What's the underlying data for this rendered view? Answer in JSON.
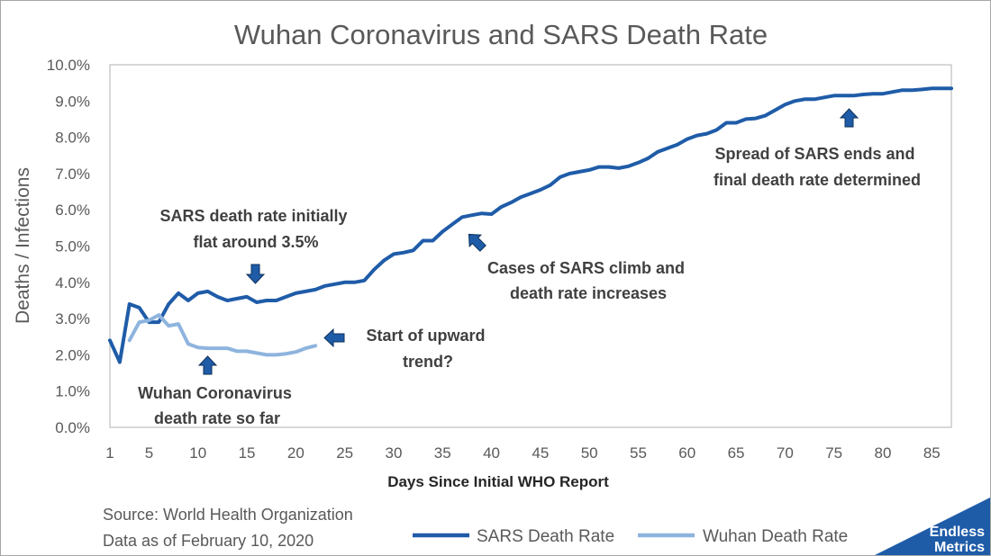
{
  "chart_data": {
    "type": "line",
    "title": "Wuhan Coronavirus and SARS Death Rate",
    "xlabel": "Days Since Initial WHO Report",
    "ylabel": "Deaths / Infections",
    "xlim": [
      1,
      87
    ],
    "ylim": [
      0,
      10
    ],
    "x_ticks": [
      "1",
      "5",
      "10",
      "15",
      "20",
      "25",
      "30",
      "35",
      "40",
      "45",
      "50",
      "55",
      "60",
      "65",
      "70",
      "75",
      "80",
      "85"
    ],
    "y_ticks": [
      "0.0%",
      "1.0%",
      "2.0%",
      "3.0%",
      "4.0%",
      "5.0%",
      "6.0%",
      "7.0%",
      "8.0%",
      "9.0%",
      "10.0%"
    ],
    "grid": false,
    "legend": "bottom",
    "series": [
      {
        "name": "SARS Death Rate",
        "color": "#1f5ca8",
        "points": [
          [
            1,
            2.4
          ],
          [
            2,
            1.8
          ],
          [
            3,
            3.4
          ],
          [
            4,
            3.3
          ],
          [
            5,
            2.9
          ],
          [
            6,
            2.9
          ],
          [
            7,
            3.4
          ],
          [
            8,
            3.7
          ],
          [
            9,
            3.5
          ],
          [
            10,
            3.7
          ],
          [
            11,
            3.75
          ],
          [
            12,
            3.6
          ],
          [
            13,
            3.5
          ],
          [
            14,
            3.55
          ],
          [
            15,
            3.6
          ],
          [
            16,
            3.45
          ],
          [
            17,
            3.5
          ],
          [
            18,
            3.5
          ],
          [
            19,
            3.6
          ],
          [
            20,
            3.7
          ],
          [
            21,
            3.75
          ],
          [
            22,
            3.8
          ],
          [
            23,
            3.9
          ],
          [
            24,
            3.95
          ],
          [
            25,
            4.0
          ],
          [
            26,
            4.0
          ],
          [
            27,
            4.05
          ],
          [
            28,
            4.35
          ],
          [
            29,
            4.6
          ],
          [
            30,
            4.78
          ],
          [
            31,
            4.82
          ],
          [
            32,
            4.88
          ],
          [
            33,
            5.15
          ],
          [
            34,
            5.15
          ],
          [
            35,
            5.4
          ],
          [
            36,
            5.6
          ],
          [
            37,
            5.8
          ],
          [
            38,
            5.85
          ],
          [
            39,
            5.9
          ],
          [
            40,
            5.88
          ],
          [
            41,
            6.08
          ],
          [
            42,
            6.2
          ],
          [
            43,
            6.35
          ],
          [
            44,
            6.45
          ],
          [
            45,
            6.55
          ],
          [
            46,
            6.68
          ],
          [
            47,
            6.9
          ],
          [
            48,
            7.0
          ],
          [
            49,
            7.05
          ],
          [
            50,
            7.1
          ],
          [
            51,
            7.18
          ],
          [
            52,
            7.18
          ],
          [
            53,
            7.15
          ],
          [
            54,
            7.2
          ],
          [
            55,
            7.3
          ],
          [
            56,
            7.42
          ],
          [
            57,
            7.6
          ],
          [
            58,
            7.7
          ],
          [
            59,
            7.8
          ],
          [
            60,
            7.95
          ],
          [
            61,
            8.05
          ],
          [
            62,
            8.1
          ],
          [
            63,
            8.2
          ],
          [
            64,
            8.4
          ],
          [
            65,
            8.4
          ],
          [
            66,
            8.5
          ],
          [
            67,
            8.52
          ],
          [
            68,
            8.6
          ],
          [
            69,
            8.75
          ],
          [
            70,
            8.9
          ],
          [
            71,
            9.0
          ],
          [
            72,
            9.05
          ],
          [
            73,
            9.05
          ],
          [
            74,
            9.1
          ],
          [
            75,
            9.15
          ],
          [
            76,
            9.15
          ],
          [
            77,
            9.15
          ],
          [
            78,
            9.18
          ],
          [
            79,
            9.2
          ],
          [
            80,
            9.2
          ],
          [
            81,
            9.25
          ],
          [
            82,
            9.3
          ],
          [
            83,
            9.3
          ],
          [
            84,
            9.32
          ],
          [
            85,
            9.35
          ],
          [
            86,
            9.35
          ],
          [
            87,
            9.35
          ]
        ]
      },
      {
        "name": "Wuhan Death Rate",
        "color": "#8eb4de",
        "points": [
          [
            3,
            2.4
          ],
          [
            4,
            2.9
          ],
          [
            5,
            2.95
          ],
          [
            6,
            3.1
          ],
          [
            7,
            2.8
          ],
          [
            8,
            2.85
          ],
          [
            9,
            2.3
          ],
          [
            10,
            2.2
          ],
          [
            11,
            2.18
          ],
          [
            12,
            2.18
          ],
          [
            13,
            2.18
          ],
          [
            14,
            2.1
          ],
          [
            15,
            2.1
          ],
          [
            16,
            2.05
          ],
          [
            17,
            2.0
          ],
          [
            18,
            2.0
          ],
          [
            19,
            2.03
          ],
          [
            20,
            2.08
          ],
          [
            21,
            2.18
          ],
          [
            22,
            2.25
          ]
        ]
      }
    ],
    "annotations": [
      {
        "lines": [
          "SARS death rate initially",
          "flat around 3.5%"
        ],
        "arrow": "down",
        "color": "#1f5ca8"
      },
      {
        "lines": [
          "Wuhan Coronavirus",
          "death rate so far"
        ],
        "arrow": "up",
        "color": "#1f5ca8"
      },
      {
        "lines": [
          "Start of upward",
          "trend?"
        ],
        "arrow": "left",
        "color": "#1f5ca8"
      },
      {
        "lines": [
          "Cases of SARS climb and",
          "death rate increases"
        ],
        "arrow": "up-left",
        "color": "#1f5ca8"
      },
      {
        "lines": [
          "Spread of SARS ends and",
          "final death rate determined"
        ],
        "arrow": "up",
        "color": "#1f5ca8"
      }
    ]
  },
  "source": {
    "line1": "Source: World Health Organization",
    "line2": "Data as of February 10, 2020"
  },
  "logo": {
    "line1": "Endless",
    "line2": "Metrics",
    "color": "#1f5ca8"
  }
}
